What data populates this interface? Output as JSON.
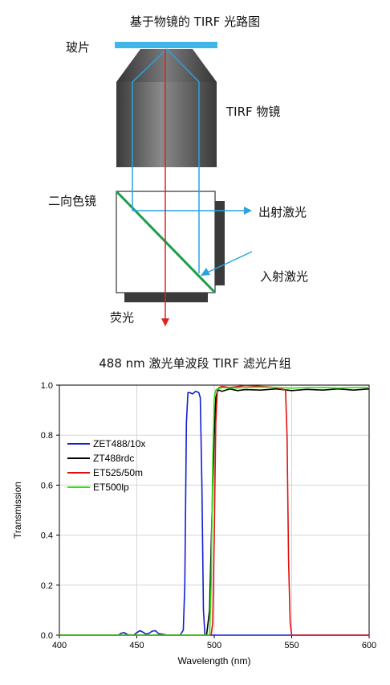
{
  "diagram": {
    "title": "基于物镜的 TIRF 光路图",
    "labels": {
      "coverslip": "玻片",
      "objective": "TIRF 物镜",
      "dichroic": "二向色镜",
      "exit_laser": "出射激光",
      "incident_laser": "入射激光",
      "fluorescence": "荧光"
    },
    "colors": {
      "coverslip": "#3fb6e8",
      "laser_path": "#29a3e0",
      "fluorescence": "#e02020",
      "dichroic": "#1e9e4a",
      "objective_dark": "#404040",
      "objective_light": "#8a8a8a"
    }
  },
  "chart_title": "488 nm 激光单波段 TIRF 滤光片组",
  "chart_data": {
    "type": "line",
    "xlabel": "Wavelength (nm)",
    "ylabel": "Transmission",
    "xlim": [
      400,
      600
    ],
    "ylim": [
      0,
      1.0
    ],
    "xticks": [
      400,
      450,
      500,
      550,
      600
    ],
    "yticks": [
      0.0,
      0.2,
      0.4,
      0.6,
      0.8,
      1.0
    ],
    "ytick_labels": [
      "0.0",
      "0.2",
      "0.4",
      "0.6",
      "0.8",
      "1.0"
    ],
    "grid": true,
    "legend_position": "middle-left",
    "series": [
      {
        "name": "ZET488/10x",
        "color": "#1020d0",
        "x": [
          400,
          438,
          440,
          442,
          444,
          448,
          450,
          452,
          454,
          456,
          458,
          460,
          462,
          464,
          470,
          478,
          480,
          481,
          482,
          483,
          484,
          486,
          488,
          490,
          491,
          492,
          493,
          494,
          496,
          500,
          600
        ],
        "y": [
          0.0,
          0.0,
          0.008,
          0.01,
          0.002,
          0.0,
          0.01,
          0.018,
          0.012,
          0.004,
          0.008,
          0.016,
          0.018,
          0.006,
          0.0,
          0.0,
          0.02,
          0.2,
          0.85,
          0.97,
          0.97,
          0.965,
          0.975,
          0.97,
          0.95,
          0.6,
          0.1,
          0.0,
          0.0,
          0.0,
          0.0
        ]
      },
      {
        "name": "ZT488rdc",
        "color": "#000000",
        "x": [
          400,
          495,
          497,
          498,
          499,
          500,
          501,
          502,
          503,
          505,
          510,
          515,
          520,
          530,
          540,
          550,
          560,
          570,
          580,
          590,
          600
        ],
        "y": [
          0.0,
          0.0,
          0.1,
          0.35,
          0.6,
          0.8,
          0.95,
          0.975,
          0.98,
          0.975,
          0.985,
          0.978,
          0.982,
          0.98,
          0.985,
          0.978,
          0.983,
          0.98,
          0.985,
          0.98,
          0.985
        ]
      },
      {
        "name": "ET525/50m",
        "color": "#e01010",
        "x": [
          400,
          498,
          499,
          500,
          501,
          502,
          503,
          505,
          510,
          520,
          530,
          540,
          546,
          547,
          548,
          549,
          550,
          551,
          600
        ],
        "y": [
          0.0,
          0.0,
          0.05,
          0.4,
          0.85,
          0.98,
          0.99,
          0.995,
          0.99,
          0.998,
          0.995,
          0.99,
          0.98,
          0.8,
          0.3,
          0.05,
          0.0,
          0.0,
          0.0
        ]
      },
      {
        "name": "ET500lp",
        "color": "#30e010",
        "x": [
          400,
          497,
          498,
          499,
          500,
          501,
          502,
          505,
          510,
          520,
          530,
          540,
          550,
          560,
          570,
          580,
          590,
          600
        ],
        "y": [
          0.0,
          0.0,
          0.2,
          0.7,
          0.95,
          0.98,
          0.985,
          0.99,
          0.988,
          0.99,
          0.992,
          0.99,
          0.988,
          0.99,
          0.99,
          0.988,
          0.99,
          0.99
        ]
      }
    ]
  }
}
